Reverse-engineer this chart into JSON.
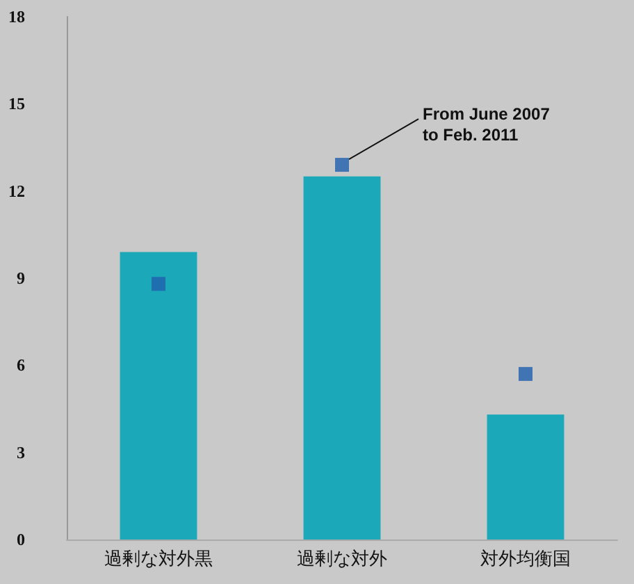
{
  "chart_data": {
    "type": "bar",
    "categories": [
      "過剰な対外黒",
      "過剰な対外",
      "対外均衡国"
    ],
    "series": [
      {
        "color": "#1ba9b9",
        "values": [
          9.9,
          12.5,
          4.3
        ]
      },
      {
        "type": "scatter",
        "color": "#1f5fae",
        "marker": "square",
        "values": [
          8.8,
          12.9,
          5.7
        ]
      }
    ],
    "ylim": [
      0,
      18
    ],
    "yticks": [
      0,
      3,
      6,
      9,
      12,
      15,
      18
    ],
    "grid": false,
    "annotations": [
      {
        "text": "From June 2007\nto Feb. 2011",
        "x": "過剰な対外",
        "y": 12.9
      }
    ]
  }
}
